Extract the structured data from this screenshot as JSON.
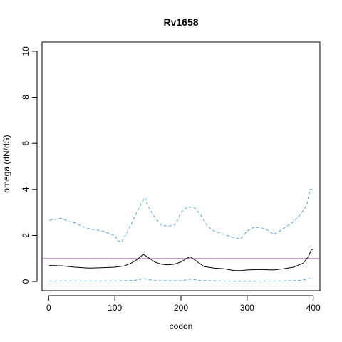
{
  "chart_data": {
    "type": "line",
    "title": "Rv1658",
    "xlabel": "codon",
    "ylabel": "omega (dN/dS)",
    "xlim": [
      -10,
      410
    ],
    "ylim": [
      -0.4,
      10.4
    ],
    "x_ticks": [
      0,
      100,
      200,
      300,
      400
    ],
    "y_ticks": [
      0,
      2,
      4,
      6,
      8,
      10
    ],
    "grid": false,
    "reference_line": {
      "y": 1,
      "color": "#c080c0"
    },
    "series": [
      {
        "style": "solid",
        "color": "#000000",
        "x": [
          1,
          20,
          40,
          60,
          80,
          100,
          115,
          125,
          135,
          143,
          150,
          160,
          170,
          180,
          190,
          200,
          208,
          214,
          220,
          235,
          250,
          265,
          280,
          290,
          300,
          320,
          340,
          355,
          370,
          385,
          393,
          397,
          400
        ],
        "y": [
          0.7,
          0.68,
          0.62,
          0.58,
          0.6,
          0.62,
          0.68,
          0.8,
          0.98,
          1.18,
          1.05,
          0.85,
          0.75,
          0.72,
          0.75,
          0.85,
          1.0,
          1.08,
          0.95,
          0.65,
          0.58,
          0.55,
          0.48,
          0.47,
          0.5,
          0.52,
          0.5,
          0.55,
          0.62,
          0.8,
          1.1,
          1.38,
          1.4
        ]
      },
      {
        "style": "dashed",
        "color": "#4aa3df",
        "x": [
          1,
          10,
          20,
          30,
          40,
          50,
          60,
          70,
          80,
          90,
          100,
          105,
          110,
          120,
          130,
          140,
          145,
          150,
          160,
          170,
          180,
          190,
          195,
          200,
          210,
          220,
          230,
          240,
          250,
          260,
          270,
          280,
          290,
          300,
          310,
          320,
          330,
          340,
          350,
          360,
          370,
          380,
          390,
          395,
          400
        ],
        "y": [
          2.65,
          2.7,
          2.75,
          2.6,
          2.55,
          2.4,
          2.3,
          2.25,
          2.2,
          2.1,
          2.0,
          1.75,
          1.7,
          2.2,
          2.8,
          3.4,
          3.65,
          3.3,
          2.8,
          2.45,
          2.4,
          2.45,
          2.7,
          3.0,
          3.25,
          3.2,
          2.9,
          2.4,
          2.2,
          2.1,
          2.0,
          1.9,
          1.85,
          2.2,
          2.35,
          2.35,
          2.25,
          2.05,
          2.2,
          2.4,
          2.6,
          2.9,
          3.3,
          4.0,
          4.0
        ]
      },
      {
        "style": "dashed",
        "color": "#4aa3df",
        "x": [
          1,
          50,
          100,
          130,
          143,
          160,
          200,
          214,
          230,
          280,
          300,
          350,
          380,
          390,
          400
        ],
        "y": [
          0.02,
          0.02,
          0.02,
          0.05,
          0.12,
          0.04,
          0.03,
          0.1,
          0.04,
          0.01,
          0.01,
          0.02,
          0.05,
          0.1,
          0.15
        ]
      }
    ]
  }
}
